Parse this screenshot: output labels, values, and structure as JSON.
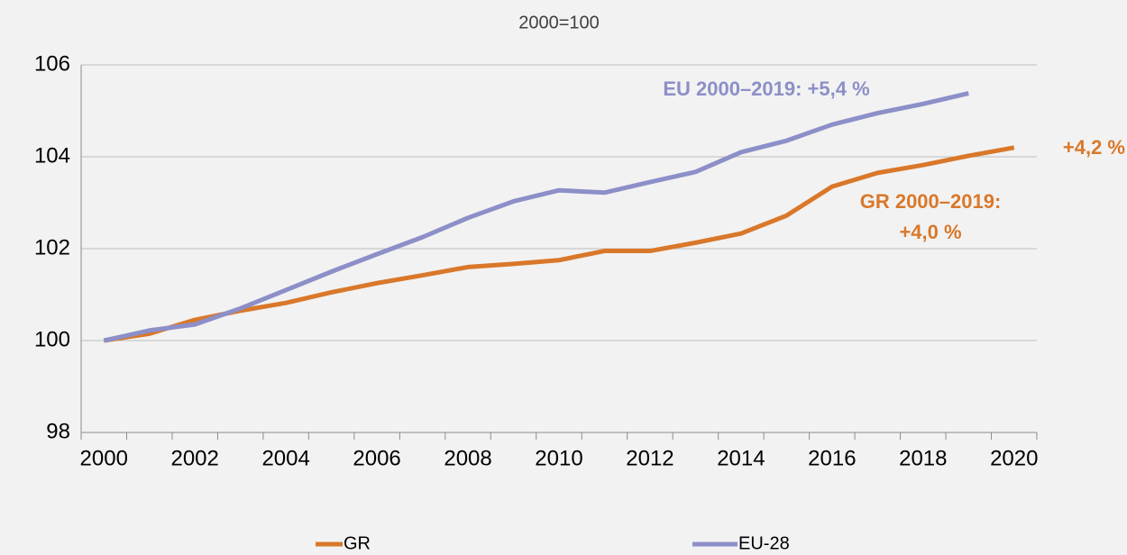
{
  "chart_data": {
    "type": "line",
    "subtitle": "2000=100",
    "categories": [
      "2000",
      null,
      "2002",
      null,
      "2004",
      null,
      "2006",
      null,
      "2008",
      null,
      "2010",
      null,
      "2012",
      null,
      "2014",
      null,
      "2016",
      null,
      "2018",
      null,
      "2020"
    ],
    "series": [
      {
        "name": "GR",
        "color": "#d9782a",
        "values": [
          100,
          100.15,
          100.45,
          100.65,
          100.82,
          101.05,
          101.25,
          101.42,
          101.6,
          101.67,
          101.75,
          101.95,
          101.95,
          102.13,
          102.33,
          102.72,
          103.35,
          103.65,
          103.82,
          104.02,
          104.2
        ]
      },
      {
        "name": "EU-28",
        "color": "#8c8fc8",
        "values": [
          100,
          100.22,
          100.35,
          100.7,
          101.1,
          101.5,
          101.88,
          102.25,
          102.67,
          103.03,
          103.27,
          103.22,
          103.45,
          103.67,
          104.1,
          104.35,
          104.7,
          104.95,
          105.15,
          105.38,
          null
        ]
      }
    ],
    "annotations": [
      "EU 2000–2019: +5,4 %",
      "+4,2 %",
      "GR 2000–2019:",
      "+4,0 %"
    ],
    "ylim": [
      98,
      106
    ],
    "yticks": [
      98,
      100,
      102,
      104,
      106
    ],
    "grid": true,
    "legend": "bottom"
  }
}
